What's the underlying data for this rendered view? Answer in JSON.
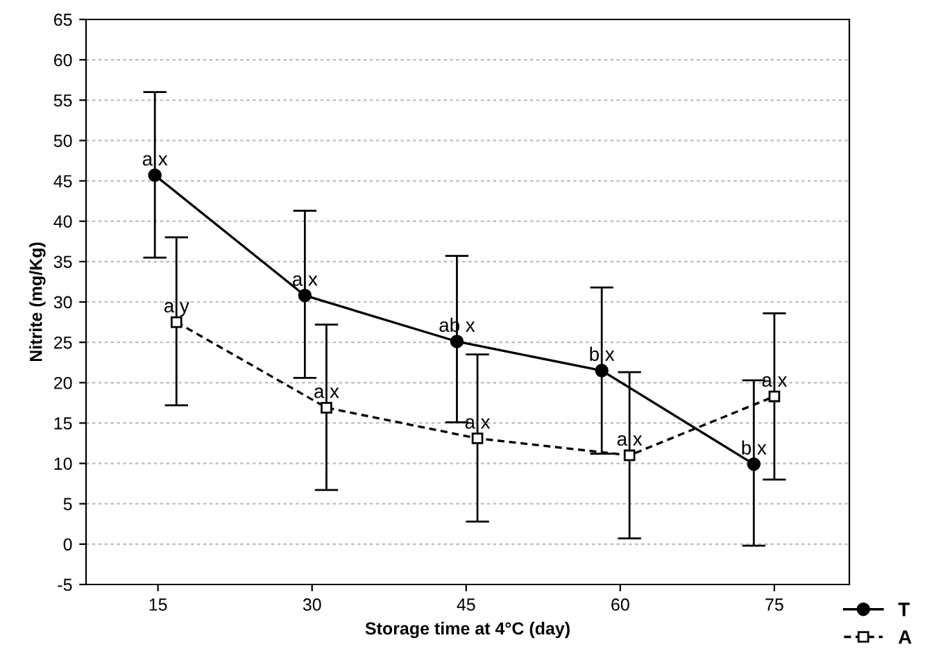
{
  "chart_data": {
    "type": "line",
    "xlabel": "Storage time at 4°C (day)",
    "ylabel": "Nitrite (mg/Kg)",
    "xlim": [
      8,
      82.3
    ],
    "xticks": [
      15,
      30,
      45,
      60,
      75
    ],
    "ylim": [
      -5,
      65
    ],
    "yticks": [
      -5,
      0,
      5,
      10,
      15,
      20,
      25,
      30,
      35,
      40,
      45,
      50,
      55,
      60,
      65
    ],
    "grid": "y",
    "legend": "bottom right",
    "series": [
      {
        "name": "T",
        "color": "#000000",
        "marker": "circle",
        "line_style": "solid",
        "x": [
          14.7,
          29.3,
          44.1,
          58.2,
          73.0
        ],
        "values": [
          45.7,
          30.8,
          25.1,
          21.5,
          9.9
        ],
        "errors": [
          [
            35.5,
            56.0
          ],
          [
            20.6,
            41.3
          ],
          [
            15.1,
            35.7
          ],
          [
            11.2,
            31.8
          ],
          [
            -0.2,
            20.3
          ]
        ]
      },
      {
        "name": "A",
        "color": "#000000",
        "marker": "square",
        "line_style": "dashed",
        "x": [
          16.8,
          31.4,
          46.1,
          60.9,
          75.0
        ],
        "values": [
          27.5,
          16.9,
          13.1,
          11.0,
          18.3
        ],
        "errors": [
          [
            17.2,
            38.0
          ],
          [
            6.7,
            27.2
          ],
          [
            2.8,
            23.5
          ],
          [
            0.7,
            21.3
          ],
          [
            8.0,
            28.6
          ]
        ]
      }
    ],
    "annotations": [
      {
        "text": "a x",
        "x": 14.7,
        "y": 45.7
      },
      {
        "text": "a x",
        "x": 29.3,
        "y": 30.8
      },
      {
        "text": "ab x",
        "x": 44.1,
        "y": 25.1
      },
      {
        "text": "b x",
        "x": 58.2,
        "y": 21.5
      },
      {
        "text": "b x",
        "x": 73.0,
        "y": 9.9
      },
      {
        "text": "a y",
        "x": 16.8,
        "y": 27.5
      },
      {
        "text": "a x",
        "x": 31.4,
        "y": 16.9
      },
      {
        "text": "a x",
        "x": 46.1,
        "y": 13.1
      },
      {
        "text": "a x",
        "x": 60.9,
        "y": 11.0
      },
      {
        "text": "a x",
        "x": 75.0,
        "y": 18.3
      }
    ]
  }
}
